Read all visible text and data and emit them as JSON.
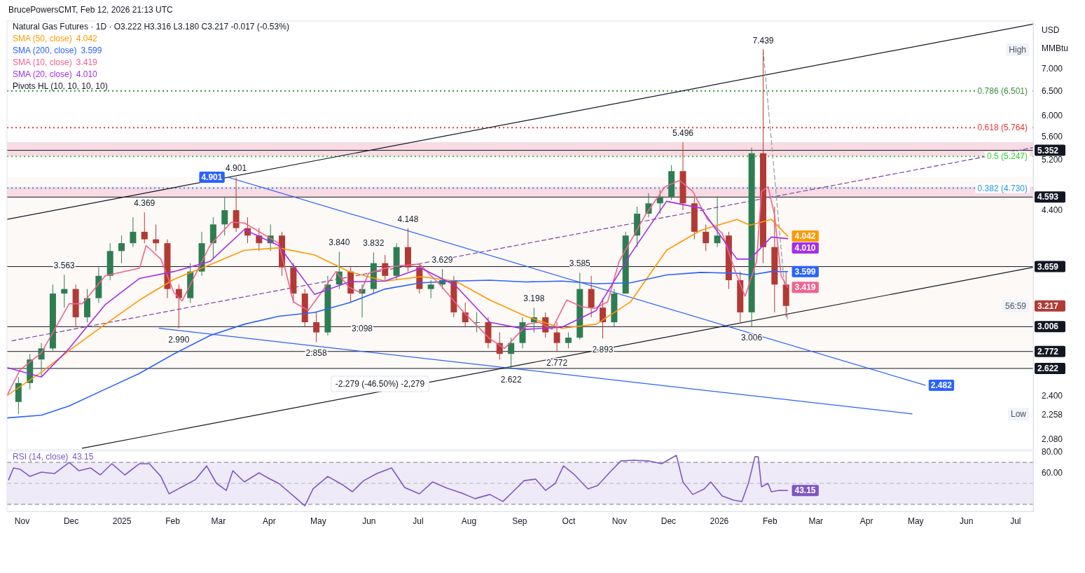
{
  "chart_data": [
    {
      "type": "candlestick",
      "title": "Natural Gas Futures · 1D · O3.222 H3.316 L3.180 C3.217 -0.017 (-0.53%)",
      "subtitle": "BrucePowersCMT, Feb 12, 2026 21:13 UTC",
      "ylabel": "USD MMBtu",
      "log": true,
      "legend": "top left",
      "tick_labels": "y",
      "xlim": [
        "2024-10-23",
        "2026-07-12"
      ],
      "ylim": [
        2.01,
        8.17
      ],
      "yticks": [
        {
          "value": 7,
          "label": "7.000"
        },
        {
          "value": 6.5,
          "label": "6.500"
        },
        {
          "value": 6,
          "label": "6.000"
        },
        {
          "value": 5.6,
          "label": "5.600"
        },
        {
          "value": 5.2,
          "label": "5.200"
        },
        {
          "value": 4.4,
          "label": "4.400"
        },
        {
          "value": 2.4,
          "label": "2.400"
        },
        {
          "value": 2.258,
          "label": "2.258"
        },
        {
          "value": 2.08,
          "label": "2.080"
        }
      ],
      "x": [
        "2024-10-30",
        "2024-11-06",
        "2024-11-13",
        "2024-11-20",
        "2024-11-27",
        "2024-12-04",
        "2024-12-11",
        "2024-12-18",
        "2024-12-25",
        "2025-01-01",
        "2025-01-08",
        "2025-01-15",
        "2025-01-22",
        "2025-01-29",
        "2025-02-05",
        "2025-02-12",
        "2025-02-19",
        "2025-02-26",
        "2025-03-05",
        "2025-03-12",
        "2025-03-19",
        "2025-03-26",
        "2025-04-02",
        "2025-04-09",
        "2025-04-16",
        "2025-04-23",
        "2025-04-30",
        "2025-05-07",
        "2025-05-14",
        "2025-05-21",
        "2025-05-28",
        "2025-06-04",
        "2025-06-11",
        "2025-06-18",
        "2025-06-25",
        "2025-07-02",
        "2025-07-09",
        "2025-07-16",
        "2025-07-23",
        "2025-07-30",
        "2025-08-06",
        "2025-08-13",
        "2025-08-20",
        "2025-08-27",
        "2025-09-03",
        "2025-09-10",
        "2025-09-17",
        "2025-09-24",
        "2025-10-01",
        "2025-10-08",
        "2025-10-15",
        "2025-10-22",
        "2025-10-29",
        "2025-11-05",
        "2025-11-12",
        "2025-11-19",
        "2025-11-26",
        "2025-12-03",
        "2025-12-10",
        "2025-12-17",
        "2025-12-24",
        "2025-12-31",
        "2026-01-07",
        "2026-01-14",
        "2026-01-21",
        "2026-01-28",
        "2026-02-04",
        "2026-02-11"
      ],
      "ohlc": [
        [
          2.35,
          2.55,
          2.258,
          2.5
        ],
        [
          2.5,
          2.75,
          2.45,
          2.7
        ],
        [
          2.7,
          2.85,
          2.55,
          2.8
        ],
        [
          2.8,
          3.45,
          2.78,
          3.35
        ],
        [
          3.35,
          3.563,
          3.2,
          3.4
        ],
        [
          3.4,
          3.45,
          3.0,
          3.1
        ],
        [
          3.1,
          3.4,
          3.05,
          3.3
        ],
        [
          3.3,
          3.65,
          3.25,
          3.55
        ],
        [
          3.55,
          3.95,
          3.5,
          3.85
        ],
        [
          3.85,
          4.05,
          3.7,
          3.95
        ],
        [
          3.95,
          4.3,
          3.9,
          4.1
        ],
        [
          4.1,
          4.369,
          3.95,
          4.0
        ],
        [
          4.0,
          4.2,
          3.85,
          3.95
        ],
        [
          3.95,
          4.0,
          3.3,
          3.4
        ],
        [
          3.4,
          3.45,
          2.99,
          3.3
        ],
        [
          3.3,
          3.7,
          3.25,
          3.6
        ],
        [
          3.6,
          4.1,
          3.55,
          3.95
        ],
        [
          3.95,
          4.3,
          3.75,
          4.2
        ],
        [
          4.2,
          4.6,
          4.05,
          4.4
        ],
        [
          4.4,
          4.901,
          4.1,
          4.15
        ],
        [
          4.15,
          4.3,
          3.95,
          4.05
        ],
        [
          4.05,
          4.15,
          3.85,
          3.95
        ],
        [
          3.95,
          4.2,
          3.85,
          4.05
        ],
        [
          4.05,
          4.1,
          3.55,
          3.65
        ],
        [
          3.65,
          3.7,
          3.25,
          3.35
        ],
        [
          3.35,
          3.4,
          3.0,
          3.05
        ],
        [
          3.05,
          3.15,
          2.858,
          2.95
        ],
        [
          2.95,
          3.55,
          2.92,
          3.45
        ],
        [
          3.45,
          3.84,
          3.4,
          3.6
        ],
        [
          3.6,
          3.65,
          3.25,
          3.35
        ],
        [
          3.35,
          3.45,
          3.098,
          3.4
        ],
        [
          3.4,
          3.832,
          3.35,
          3.7
        ],
        [
          3.7,
          3.8,
          3.5,
          3.55
        ],
        [
          3.55,
          3.95,
          3.5,
          3.9
        ],
        [
          3.9,
          4.148,
          3.6,
          3.65
        ],
        [
          3.65,
          3.7,
          3.35,
          3.4
        ],
        [
          3.4,
          3.5,
          3.3,
          3.45
        ],
        [
          3.45,
          3.629,
          3.4,
          3.5
        ],
        [
          3.5,
          3.55,
          3.1,
          3.15
        ],
        [
          3.15,
          3.25,
          3.0,
          3.05
        ],
        [
          3.05,
          3.15,
          2.95,
          3.05
        ],
        [
          3.05,
          3.1,
          2.8,
          2.85
        ],
        [
          2.85,
          2.95,
          2.7,
          2.75
        ],
        [
          2.75,
          2.9,
          2.622,
          2.85
        ],
        [
          2.85,
          3.1,
          2.8,
          3.05
        ],
        [
          3.05,
          3.198,
          2.95,
          3.1
        ],
        [
          3.1,
          3.15,
          2.9,
          2.95
        ],
        [
          2.95,
          3.05,
          2.772,
          2.85
        ],
        [
          2.85,
          2.95,
          2.8,
          2.9
        ],
        [
          2.9,
          3.585,
          2.88,
          3.4
        ],
        [
          3.4,
          3.55,
          3.1,
          3.2
        ],
        [
          3.2,
          3.3,
          2.893,
          3.05
        ],
        [
          3.05,
          3.4,
          3.0,
          3.35
        ],
        [
          3.35,
          4.1,
          3.35,
          4.05
        ],
        [
          4.05,
          4.45,
          3.9,
          4.35
        ],
        [
          4.35,
          4.65,
          4.3,
          4.5
        ],
        [
          4.5,
          4.7,
          4.35,
          4.6
        ],
        [
          4.6,
          5.1,
          4.55,
          5.0
        ],
        [
          5.0,
          5.496,
          4.4,
          4.5
        ],
        [
          4.5,
          4.6,
          4.0,
          4.1
        ],
        [
          4.1,
          4.2,
          3.85,
          3.95
        ],
        [
          3.95,
          4.6,
          3.9,
          4.05
        ],
        [
          4.05,
          4.1,
          3.4,
          3.5
        ],
        [
          3.5,
          3.6,
          3.05,
          3.15
        ],
        [
          3.15,
          5.4,
          3.006,
          5.3
        ],
        [
          5.3,
          7.439,
          3.7,
          3.9
        ],
        [
          3.9,
          4.45,
          3.15,
          3.45
        ],
        [
          3.45,
          3.6,
          3.1,
          3.217
        ]
      ],
      "value_labels": [
        null,
        null,
        null,
        null,
        null,
        null,
        null,
        null,
        null,
        null,
        null,
        null,
        null,
        null,
        null,
        null,
        null,
        null,
        null,
        null,
        null,
        null,
        null,
        null,
        null,
        null,
        null,
        null,
        null,
        null,
        null,
        null,
        null,
        null,
        null,
        null,
        null,
        null,
        null,
        null,
        null,
        null,
        null,
        null,
        null,
        null,
        null,
        null,
        null,
        null,
        null,
        null,
        null,
        null,
        null,
        null,
        null,
        null,
        null,
        null,
        null,
        null,
        null,
        null,
        null,
        null,
        null,
        "3.217"
      ],
      "colors": [
        "#2e7d52",
        "#2e7d52",
        "#2e7d52",
        "#2e7d52",
        "#2e7d52",
        "#b23a34",
        "#2e7d52",
        "#2e7d52",
        "#2e7d52",
        "#2e7d52",
        "#2e7d52",
        "#b23a34",
        "#b23a34",
        "#b23a34",
        "#b23a34",
        "#2e7d52",
        "#2e7d52",
        "#2e7d52",
        "#2e7d52",
        "#b23a34",
        "#b23a34",
        "#b23a34",
        "#2e7d52",
        "#b23a34",
        "#b23a34",
        "#b23a34",
        "#b23a34",
        "#2e7d52",
        "#2e7d52",
        "#b23a34",
        "#2e7d52",
        "#2e7d52",
        "#b23a34",
        "#2e7d52",
        "#b23a34",
        "#b23a34",
        "#2e7d52",
        "#2e7d52",
        "#b23a34",
        "#b23a34",
        "#2e7d52",
        "#b23a34",
        "#b23a34",
        "#2e7d52",
        "#2e7d52",
        "#2e7d52",
        "#b23a34",
        "#b23a34",
        "#2e7d52",
        "#2e7d52",
        "#b23a34",
        "#b23a34",
        "#2e7d52",
        "#2e7d52",
        "#2e7d52",
        "#2e7d52",
        "#2e7d52",
        "#2e7d52",
        "#b23a34",
        "#b23a34",
        "#b23a34",
        "#2e7d52",
        "#b23a34",
        "#b23a34",
        "#2e7d52",
        "#b23a34",
        "#b23a34",
        "#b23a34"
      ],
      "series": [
        {
          "name": "SMA (50, close)",
          "type": "line",
          "color": "#ff9800",
          "x": [
            "2024-10-23",
            "2024-11-13",
            "2024-11-30",
            "2024-12-22",
            "2025-01-12",
            "2025-02-02",
            "2025-02-24",
            "2025-03-17",
            "2025-04-07",
            "2025-04-29",
            "2025-05-20",
            "2025-06-11",
            "2025-07-03",
            "2025-07-24",
            "2025-08-14",
            "2025-09-05",
            "2025-09-27",
            "2025-10-18",
            "2025-11-08",
            "2025-11-30",
            "2025-12-21",
            "2026-01-12",
            "2026-01-20",
            "2026-02-02",
            "2026-02-12"
          ],
          "values": [
            2.4,
            2.59,
            2.78,
            3.03,
            3.28,
            3.51,
            3.68,
            3.86,
            3.89,
            3.8,
            3.6,
            3.49,
            3.54,
            3.49,
            3.28,
            3.11,
            2.99,
            3.03,
            3.26,
            3.86,
            4.12,
            4.27,
            4.19,
            4.27,
            4.042
          ],
          "value_labels": [
            null,
            null,
            null,
            null,
            null,
            null,
            null,
            null,
            null,
            null,
            null,
            null,
            null,
            null,
            null,
            null,
            null,
            null,
            null,
            null,
            null,
            null,
            null,
            null,
            "4.042"
          ]
        },
        {
          "name": "SMA (200, close)",
          "type": "line",
          "color": "#2962ff",
          "x": [
            "2024-10-23",
            "2024-11-13",
            "2024-11-30",
            "2024-12-22",
            "2025-01-12",
            "2025-02-02",
            "2025-02-24",
            "2025-03-17",
            "2025-04-07",
            "2025-04-29",
            "2025-05-20",
            "2025-06-11",
            "2025-07-03",
            "2025-07-24",
            "2025-08-14",
            "2025-09-05",
            "2025-09-27",
            "2025-10-18",
            "2025-11-08",
            "2025-11-30",
            "2025-12-21",
            "2026-01-12",
            "2026-01-20",
            "2026-02-02",
            "2026-02-12"
          ],
          "values": [
            2.23,
            2.25,
            2.32,
            2.45,
            2.58,
            2.75,
            2.92,
            3.03,
            3.11,
            3.15,
            3.25,
            3.4,
            3.47,
            3.49,
            3.5,
            3.48,
            3.49,
            3.46,
            3.47,
            3.56,
            3.59,
            3.58,
            3.56,
            3.6,
            3.599
          ],
          "value_labels": [
            null,
            null,
            null,
            null,
            null,
            null,
            null,
            null,
            null,
            null,
            null,
            null,
            null,
            null,
            null,
            null,
            null,
            null,
            null,
            null,
            null,
            null,
            null,
            null,
            "3.599"
          ]
        },
        {
          "name": "SMA (10, close)",
          "type": "line",
          "color": "#f06292",
          "x": [
            "2024-10-23",
            "2024-10-31",
            "2024-11-13",
            "2024-11-30",
            "2024-12-08",
            "2024-12-22",
            "2025-01-12",
            "2025-01-16",
            "2025-01-25",
            "2025-02-02",
            "2025-02-07",
            "2025-02-24",
            "2025-03-09",
            "2025-03-17",
            "2025-04-07",
            "2025-04-16",
            "2025-04-25",
            "2025-05-03",
            "2025-05-12",
            "2025-05-20",
            "2025-05-27",
            "2025-06-01",
            "2025-06-15",
            "2025-07-02",
            "2025-07-15",
            "2025-07-28",
            "2025-08-14",
            "2025-08-23",
            "2025-09-06",
            "2025-09-13",
            "2025-09-21",
            "2025-09-30",
            "2025-10-09",
            "2025-10-17",
            "2025-10-25",
            "2025-11-01",
            "2025-11-17",
            "2025-11-29",
            "2025-12-08",
            "2025-12-16",
            "2025-12-25",
            "2026-01-03",
            "2026-01-11",
            "2026-01-17",
            "2026-01-24",
            "2026-01-27",
            "2026-01-31",
            "2026-02-04",
            "2026-02-08",
            "2026-02-12"
          ],
          "values": [
            2.4,
            2.61,
            2.76,
            3.24,
            3.24,
            3.55,
            3.64,
            3.92,
            3.75,
            3.36,
            3.27,
            3.92,
            4.23,
            4.22,
            3.95,
            3.26,
            3.17,
            3.36,
            3.6,
            3.42,
            3.36,
            3.58,
            3.66,
            3.69,
            3.44,
            3.17,
            2.89,
            2.8,
            3.03,
            3.05,
            2.98,
            3.28,
            3.21,
            3.19,
            3.26,
            3.72,
            4.33,
            4.75,
            4.85,
            4.68,
            4.27,
            4.08,
            3.6,
            3.32,
            3.72,
            4.68,
            4.75,
            4.33,
            3.55,
            3.419
          ],
          "value_labels": [
            null,
            null,
            null,
            null,
            null,
            null,
            null,
            null,
            null,
            null,
            null,
            null,
            null,
            null,
            null,
            null,
            null,
            null,
            null,
            null,
            null,
            null,
            null,
            null,
            null,
            null,
            null,
            null,
            null,
            null,
            null,
            null,
            null,
            null,
            null,
            null,
            null,
            null,
            null,
            null,
            null,
            null,
            null,
            null,
            null,
            null,
            null,
            null,
            null,
            "3.419"
          ]
        },
        {
          "name": "SMA (20, close)",
          "type": "line",
          "color": "#a32ee8",
          "x": [
            "2024-10-23",
            "2024-11-13",
            "2024-11-30",
            "2024-12-22",
            "2025-01-12",
            "2025-02-02",
            "2025-02-24",
            "2025-03-17",
            "2025-04-07",
            "2025-04-29",
            "2025-05-20",
            "2025-06-11",
            "2025-07-03",
            "2025-07-24",
            "2025-08-14",
            "2025-09-05",
            "2025-09-27",
            "2025-10-18",
            "2025-11-08",
            "2025-11-30",
            "2025-12-21",
            "2026-01-12",
            "2026-01-20",
            "2026-02-02",
            "2026-02-12"
          ],
          "values": [
            2.63,
            2.55,
            2.8,
            3.23,
            3.52,
            3.6,
            3.72,
            4.13,
            3.92,
            3.34,
            3.48,
            3.49,
            3.64,
            3.44,
            3.05,
            2.98,
            3.0,
            3.17,
            3.81,
            4.53,
            4.43,
            3.75,
            3.75,
            4.03,
            4.01
          ],
          "value_labels": [
            null,
            null,
            null,
            null,
            null,
            null,
            null,
            null,
            null,
            null,
            null,
            null,
            null,
            null,
            null,
            null,
            null,
            null,
            null,
            null,
            null,
            null,
            null,
            null,
            "4.010"
          ]
        },
        {
          "type": "line",
          "color": "#131722",
          "x": [
            "2024-10-23",
            "2026-07-12"
          ],
          "values": [
            4.27,
            8.09
          ]
        },
        {
          "type": "line",
          "color": "#131722",
          "x": [
            "2024-12-08",
            "2026-07-12"
          ],
          "values": [
            2.02,
            3.65
          ]
        },
        {
          "type": "line",
          "color": "#7e3fa8",
          "line_style": "dashed",
          "x": [
            "2024-10-26",
            "2026-07-12"
          ],
          "values": [
            2.87,
            5.4
          ]
        },
        {
          "type": "line",
          "color": "#2962ff",
          "x": [
            "2025-03-07",
            "2026-05-07"
          ],
          "values": [
            4.901,
            2.482
          ],
          "value_labels": [
            "4.901",
            "2.482"
          ]
        },
        {
          "type": "line",
          "color": "#2962ff",
          "x": [
            "2025-01-24",
            "2026-04-29"
          ],
          "values": [
            2.99,
            2.26
          ]
        },
        {
          "type": "line",
          "color": "#9598a1",
          "line_style": "dashed",
          "x": [
            "2026-01-28",
            "2026-02-12"
          ],
          "values": [
            7.439,
            3.06
          ]
        }
      ],
      "ref_lines": [
        {
          "axis": "y",
          "value": 5.352,
          "label": "5.352",
          "color": "#131722"
        },
        {
          "axis": "y",
          "value": 4.593,
          "label": "4.593",
          "color": "#131722"
        },
        {
          "axis": "y",
          "value": 3.659,
          "label": "3.659",
          "color": "#131722"
        },
        {
          "axis": "y",
          "value": 3.006,
          "label": "3.006",
          "color": "#131722"
        },
        {
          "axis": "y",
          "value": 2.772,
          "label": "2.772",
          "color": "#131722"
        },
        {
          "axis": "y",
          "value": 2.622,
          "label": "2.622",
          "color": "#131722"
        },
        {
          "axis": "y",
          "value": 6.501,
          "label": "0.786 (6.501)",
          "color": "#388e3c",
          "line_style": "dotted"
        },
        {
          "axis": "y",
          "value": 5.764,
          "label": "0.618 (5.764)",
          "color": "#e53935",
          "line_style": "dotted"
        },
        {
          "axis": "y",
          "value": 5.247,
          "label": "0.5 (5.247)",
          "color": "#33cc33",
          "line_style": "dotted"
        },
        {
          "axis": "y",
          "value": 4.73,
          "label": "0.382 (4.730)",
          "color": "#2196f3",
          "line_style": "dotted"
        }
      ],
      "bands": [
        {
          "axis": "y",
          "from": 2.622,
          "to": 4.901,
          "color": "#fdf9f6",
          "label": "-2.279 (-46.50%) -2,279"
        },
        {
          "axis": "y",
          "from": 5.247,
          "to": 5.496,
          "color": "#f9dbe4"
        },
        {
          "axis": "y",
          "from": 4.593,
          "to": 4.75,
          "color": "#f9dbe4"
        }
      ],
      "annotations": [
        "Pivots HL (10, 10, 10, 10)",
        {
          "text": "3.563",
          "x": "2024-11-27",
          "y": 3.563
        },
        {
          "text": "4.369",
          "x": "2025-01-15",
          "y": 4.369
        },
        {
          "text": "2.990",
          "x": "2025-02-05",
          "y": 2.99
        },
        {
          "text": "4.901",
          "x": "2025-03-12",
          "y": 4.901
        },
        {
          "text": "2.858",
          "x": "2025-04-30",
          "y": 2.858
        },
        {
          "text": "3.840",
          "x": "2025-05-14",
          "y": 3.84
        },
        {
          "text": "3.098",
          "x": "2025-05-28",
          "y": 3.098
        },
        {
          "text": "3.832",
          "x": "2025-06-04",
          "y": 3.832
        },
        {
          "text": "4.148",
          "x": "2025-06-25",
          "y": 4.148
        },
        {
          "text": "3.629",
          "x": "2025-07-16",
          "y": 3.629
        },
        {
          "text": "2.622",
          "x": "2025-08-27",
          "y": 2.622
        },
        {
          "text": "3.198",
          "x": "2025-09-10",
          "y": 3.198
        },
        {
          "text": "2.772",
          "x": "2025-09-24",
          "y": 2.772
        },
        {
          "text": "3.585",
          "x": "2025-10-08",
          "y": 3.585
        },
        {
          "text": "2.893",
          "x": "2025-10-22",
          "y": 2.893
        },
        {
          "text": "5.496",
          "x": "2025-12-10",
          "y": 5.496
        },
        {
          "text": "3.006",
          "x": "2026-01-21",
          "y": 3.006
        },
        {
          "text": "7.439",
          "x": "2026-01-28",
          "y": 7.439
        },
        {
          "text": "High",
          "y": 7.439
        },
        {
          "text": "Low",
          "y": 2.258
        },
        {
          "text": "56:59",
          "y": 3.217
        }
      ]
    },
    {
      "type": "line",
      "legend": "top left",
      "xlim": [
        "2024-10-23",
        "2026-07-12"
      ],
      "ylim": [
        23.3,
        80.7
      ],
      "yticks": [
        {
          "value": 80,
          "label": "80.00"
        },
        {
          "value": 60,
          "label": "60.00"
        }
      ],
      "xticks": [
        {
          "value": "2024-11-01",
          "label": "Nov"
        },
        {
          "value": "2024-12-01",
          "label": "Dec"
        },
        {
          "value": "2025-01-01",
          "label": "2025"
        },
        {
          "value": "2025-02-01",
          "label": "Feb"
        },
        {
          "value": "2025-03-01",
          "label": "Mar"
        },
        {
          "value": "2025-04-01",
          "label": "Apr"
        },
        {
          "value": "2025-05-01",
          "label": "May"
        },
        {
          "value": "2025-06-01",
          "label": "Jun"
        },
        {
          "value": "2025-07-01",
          "label": "Jul"
        },
        {
          "value": "2025-08-01",
          "label": "Aug"
        },
        {
          "value": "2025-09-01",
          "label": "Sep"
        },
        {
          "value": "2025-10-01",
          "label": "Oct"
        },
        {
          "value": "2025-11-01",
          "label": "Nov"
        },
        {
          "value": "2025-12-01",
          "label": "Dec"
        },
        {
          "value": "2026-01-01",
          "label": "2026"
        },
        {
          "value": "2026-02-01",
          "label": "Feb"
        },
        {
          "value": "2026-03-01",
          "label": "Mar"
        },
        {
          "value": "2026-04-01",
          "label": "Apr"
        },
        {
          "value": "2026-05-01",
          "label": "May"
        },
        {
          "value": "2026-06-01",
          "label": "Jun"
        },
        {
          "value": "2026-07-01",
          "label": "Jul"
        }
      ],
      "ref_lines": [
        {
          "axis": "y",
          "value": 70,
          "color": "#787b86",
          "line_style": "dashed"
        },
        {
          "axis": "y",
          "value": 50,
          "color": "#b2b5be",
          "line_style": "dashed"
        },
        {
          "axis": "y",
          "value": 30,
          "color": "#787b86",
          "line_style": "dashed"
        }
      ],
      "bands": [
        {
          "axis": "y",
          "from": 30,
          "to": 70,
          "color": "#efeaf8"
        }
      ],
      "series": [
        {
          "name": "RSI (14, close)",
          "color": "#7e57c2",
          "x": [
            "2024-10-24",
            "2024-10-27",
            "2024-10-31",
            "2024-11-06",
            "2024-11-13",
            "2024-11-21",
            "2024-11-30",
            "2024-12-06",
            "2024-12-13",
            "2024-12-19",
            "2024-12-26",
            "2025-01-03",
            "2025-01-12",
            "2025-01-18",
            "2025-01-25",
            "2025-01-30",
            "2025-02-07",
            "2025-02-15",
            "2025-02-22",
            "2025-02-28",
            "2025-03-06",
            "2025-03-10",
            "2025-03-17",
            "2025-03-26",
            "2025-04-01",
            "2025-04-07",
            "2025-04-16",
            "2025-04-23",
            "2025-04-28",
            "2025-05-07",
            "2025-05-16",
            "2025-05-22",
            "2025-05-29",
            "2025-06-06",
            "2025-06-15",
            "2025-06-23",
            "2025-07-02",
            "2025-07-10",
            "2025-07-19",
            "2025-07-28",
            "2025-08-05",
            "2025-08-14",
            "2025-08-22",
            "2025-08-29",
            "2025-09-04",
            "2025-09-11",
            "2025-09-17",
            "2025-09-23",
            "2025-09-28",
            "2025-10-04",
            "2025-10-13",
            "2025-10-19",
            "2025-10-26",
            "2025-11-02",
            "2025-11-10",
            "2025-11-19",
            "2025-11-27",
            "2025-12-06",
            "2025-12-10",
            "2025-12-16",
            "2025-12-23",
            "2025-12-27",
            "2026-01-03",
            "2026-01-10",
            "2026-01-15",
            "2026-01-19",
            "2026-01-23",
            "2026-01-25",
            "2026-01-27",
            "2026-01-31",
            "2026-02-02",
            "2026-02-07",
            "2026-02-12"
          ],
          "values": [
            53.4,
            64.7,
            63.4,
            56.6,
            60.7,
            59.3,
            70.0,
            62.0,
            64.7,
            58.0,
            68.7,
            58.0,
            68.7,
            68.7,
            56.6,
            40.0,
            46.7,
            53.4,
            66.6,
            50.0,
            43.3,
            62.0,
            51.3,
            60.0,
            54.7,
            50.0,
            38.0,
            28.6,
            44.7,
            56.6,
            48.7,
            42.0,
            52.6,
            59.3,
            64.7,
            46.0,
            40.0,
            51.3,
            45.3,
            40.7,
            35.4,
            39.4,
            32.7,
            43.3,
            52.6,
            54.0,
            43.3,
            50.0,
            66.6,
            59.3,
            44.7,
            48.0,
            60.0,
            71.3,
            72.0,
            71.3,
            68.7,
            76.7,
            51.3,
            39.4,
            44.7,
            51.3,
            38.0,
            34.0,
            32.7,
            50.0,
            75.3,
            75.3,
            46.7,
            50.0,
            42.0,
            43.3,
            43.15
          ],
          "value_labels": [
            null,
            null,
            null,
            null,
            null,
            null,
            null,
            null,
            null,
            null,
            null,
            null,
            null,
            null,
            null,
            null,
            null,
            null,
            null,
            null,
            null,
            null,
            null,
            null,
            null,
            null,
            null,
            null,
            null,
            null,
            null,
            null,
            null,
            null,
            null,
            null,
            null,
            null,
            null,
            null,
            null,
            null,
            null,
            null,
            null,
            null,
            null,
            null,
            null,
            null,
            null,
            null,
            null,
            null,
            null,
            null,
            null,
            null,
            null,
            null,
            null,
            null,
            null,
            null,
            null,
            null,
            null,
            null,
            null,
            null,
            null,
            null,
            "43.15"
          ]
        }
      ]
    }
  ]
}
